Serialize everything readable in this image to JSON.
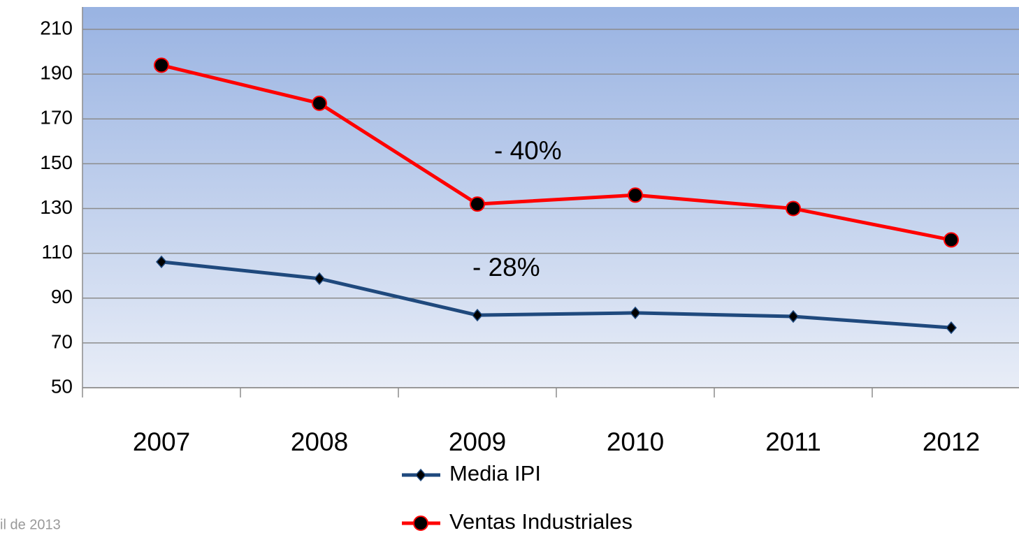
{
  "chart_data": {
    "type": "line",
    "categories": [
      "2007",
      "2008",
      "2009",
      "2010",
      "2011",
      "2012"
    ],
    "series": [
      {
        "name": "Media IPI",
        "color": "#1f497d",
        "marker": "diamond",
        "values": [
          106.2,
          98.7,
          82.4,
          83.4,
          81.8,
          76.8
        ]
      },
      {
        "name": "Ventas Industriales",
        "color": "#ff0000",
        "marker": "circle",
        "values": [
          194,
          177,
          132,
          136,
          130,
          116
        ]
      }
    ],
    "ylim": [
      50,
      220
    ],
    "yticks": [
      50,
      70,
      90,
      110,
      130,
      150,
      170,
      190,
      210
    ],
    "grid": true,
    "annotations": [
      "- 40%",
      "- 28%"
    ],
    "footer": "il de 2013"
  }
}
